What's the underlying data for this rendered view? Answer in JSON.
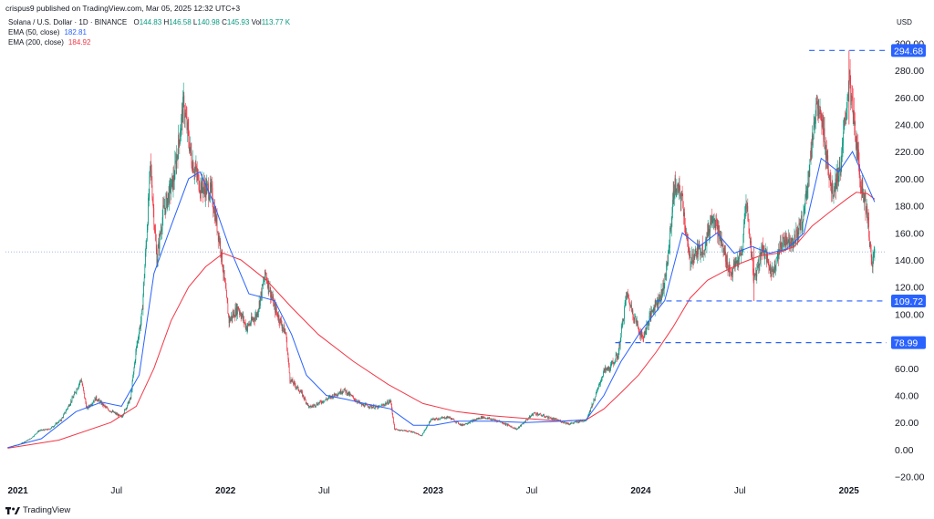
{
  "header": {
    "published": "crispus9 published on TradingView.com, Mar 05, 2025 12:32 UTC+3"
  },
  "legend": {
    "symbol": "Solana / U.S. Dollar · 1D · BINANCE",
    "open_label": "O",
    "open": "144.83",
    "high_label": "H",
    "high": "146.58",
    "low_label": "L",
    "low": "140.98",
    "close_label": "C",
    "close": "145.93",
    "vol_label": "Vol",
    "vol": "113.77 K",
    "ema50_label": "EMA (50, close)",
    "ema50": "182.81",
    "ema200_label": "EMA (200, close)",
    "ema200": "184.92"
  },
  "currency": "USD",
  "footer": {
    "brand": "TradingView"
  },
  "colors": {
    "up": "#089981",
    "down": "#f23645",
    "ema50": "#2962ff",
    "ema200": "#f23645",
    "level_line": "#2962ff",
    "level_tag": "#2962ff"
  },
  "chart_data": {
    "type": "candlestick",
    "y_axis": {
      "ticks": [
        300,
        280,
        260,
        240,
        220,
        200,
        180,
        160,
        140,
        120,
        100,
        80,
        60,
        40,
        20,
        0,
        -20
      ],
      "tick_labels": [
        "300.00",
        "280.00",
        "260.00",
        "240.00",
        "220.00",
        "200.00",
        "180.00",
        "160.00",
        "140.00",
        "120.00",
        "100.00",
        "80.00",
        "60.00",
        "40.00",
        "20.00",
        "0.00",
        "−20.00"
      ],
      "range": [
        -25,
        305
      ]
    },
    "x_axis": {
      "labels": [
        {
          "text": "2021",
          "date": "2021-01-01",
          "year": true
        },
        {
          "text": "Jul",
          "date": "2021-07-01",
          "year": false
        },
        {
          "text": "2022",
          "date": "2022-01-01",
          "year": true
        },
        {
          "text": "Jul",
          "date": "2022-07-01",
          "year": false
        },
        {
          "text": "2023",
          "date": "2023-01-01",
          "year": true
        },
        {
          "text": "Jul",
          "date": "2023-07-01",
          "year": false
        },
        {
          "text": "2024",
          "date": "2024-01-01",
          "year": true
        },
        {
          "text": "Jul",
          "date": "2024-07-01",
          "year": false
        },
        {
          "text": "2025",
          "date": "2025-01-01",
          "year": true
        }
      ],
      "range": [
        "2020-12-28",
        "2025-03-26"
      ]
    },
    "levels": [
      {
        "value": 294.68,
        "label": "294.68",
        "from": "2024-11-10"
      },
      {
        "value": 109.72,
        "label": "109.72",
        "from": "2024-02-15"
      },
      {
        "value": 78.99,
        "label": "78.99",
        "from": "2023-12-05"
      }
    ],
    "current_price": 145.93,
    "price_points": [
      [
        "2021-01-01",
        1.5
      ],
      [
        "2021-01-20",
        3.5
      ],
      [
        "2021-02-10",
        8
      ],
      [
        "2021-02-25",
        14
      ],
      [
        "2021-03-15",
        15
      ],
      [
        "2021-04-05",
        22
      ],
      [
        "2021-04-25",
        38
      ],
      [
        "2021-05-10",
        52
      ],
      [
        "2021-05-20",
        30
      ],
      [
        "2021-06-05",
        38
      ],
      [
        "2021-06-25",
        30
      ],
      [
        "2021-07-20",
        24
      ],
      [
        "2021-08-05",
        38
      ],
      [
        "2021-08-15",
        75
      ],
      [
        "2021-08-25",
        100
      ],
      [
        "2021-09-01",
        150
      ],
      [
        "2021-09-09",
        210
      ],
      [
        "2021-09-20",
        140
      ],
      [
        "2021-10-01",
        175
      ],
      [
        "2021-10-20",
        200
      ],
      [
        "2021-11-06",
        255
      ],
      [
        "2021-11-20",
        215
      ],
      [
        "2021-12-05",
        195
      ],
      [
        "2021-12-25",
        190
      ],
      [
        "2022-01-10",
        150
      ],
      [
        "2022-01-25",
        95
      ],
      [
        "2022-02-10",
        105
      ],
      [
        "2022-02-25",
        90
      ],
      [
        "2022-03-15",
        100
      ],
      [
        "2022-03-30",
        130
      ],
      [
        "2022-04-15",
        105
      ],
      [
        "2022-05-05",
        85
      ],
      [
        "2022-05-12",
        52
      ],
      [
        "2022-06-01",
        42
      ],
      [
        "2022-06-15",
        31
      ],
      [
        "2022-07-10",
        36
      ],
      [
        "2022-08-15",
        44
      ],
      [
        "2022-09-15",
        33
      ],
      [
        "2022-10-15",
        31
      ],
      [
        "2022-11-05",
        36
      ],
      [
        "2022-11-12",
        15
      ],
      [
        "2022-12-15",
        13
      ],
      [
        "2022-12-29",
        10
      ],
      [
        "2023-01-15",
        22
      ],
      [
        "2023-02-15",
        24
      ],
      [
        "2023-03-10",
        18
      ],
      [
        "2023-04-15",
        24
      ],
      [
        "2023-05-15",
        21
      ],
      [
        "2023-06-15",
        15
      ],
      [
        "2023-07-15",
        27
      ],
      [
        "2023-08-15",
        23
      ],
      [
        "2023-09-15",
        19
      ],
      [
        "2023-10-15",
        22
      ],
      [
        "2023-10-30",
        38
      ],
      [
        "2023-11-15",
        58
      ],
      [
        "2023-11-25",
        60
      ],
      [
        "2023-12-10",
        70
      ],
      [
        "2023-12-25",
        115
      ],
      [
        "2024-01-10",
        95
      ],
      [
        "2024-01-22",
        82
      ],
      [
        "2024-02-10",
        105
      ],
      [
        "2024-02-25",
        115
      ],
      [
        "2024-03-05",
        135
      ],
      [
        "2024-03-18",
        195
      ],
      [
        "2024-04-01",
        185
      ],
      [
        "2024-04-13",
        140
      ],
      [
        "2024-04-25",
        145
      ],
      [
        "2024-05-10",
        150
      ],
      [
        "2024-05-25",
        175
      ],
      [
        "2024-06-10",
        150
      ],
      [
        "2024-06-25",
        130
      ],
      [
        "2024-07-15",
        145
      ],
      [
        "2024-07-22",
        185
      ],
      [
        "2024-08-05",
        125
      ],
      [
        "2024-08-20",
        150
      ],
      [
        "2024-09-05",
        130
      ],
      [
        "2024-09-25",
        155
      ],
      [
        "2024-10-15",
        155
      ],
      [
        "2024-10-30",
        170
      ],
      [
        "2024-11-12",
        215
      ],
      [
        "2024-11-22",
        255
      ],
      [
        "2024-12-05",
        235
      ],
      [
        "2024-12-20",
        190
      ],
      [
        "2025-01-05",
        210
      ],
      [
        "2025-01-19",
        275
      ],
      [
        "2025-01-28",
        240
      ],
      [
        "2025-02-08",
        200
      ],
      [
        "2025-02-20",
        175
      ],
      [
        "2025-02-28",
        135
      ],
      [
        "2025-03-05",
        146
      ]
    ],
    "ema50_points": [
      [
        "2021-01-01",
        1.5
      ],
      [
        "2021-03-01",
        8
      ],
      [
        "2021-05-01",
        28
      ],
      [
        "2021-06-15",
        35
      ],
      [
        "2021-07-20",
        32
      ],
      [
        "2021-08-20",
        55
      ],
      [
        "2021-09-15",
        130
      ],
      [
        "2021-10-15",
        165
      ],
      [
        "2021-11-15",
        200
      ],
      [
        "2021-12-05",
        205
      ],
      [
        "2021-12-31",
        180
      ],
      [
        "2022-01-25",
        150
      ],
      [
        "2022-03-01",
        115
      ],
      [
        "2022-04-15",
        110
      ],
      [
        "2022-05-15",
        85
      ],
      [
        "2022-06-10",
        55
      ],
      [
        "2022-07-15",
        40
      ],
      [
        "2022-08-20",
        37
      ],
      [
        "2022-10-01",
        33
      ],
      [
        "2022-11-05",
        30
      ],
      [
        "2022-12-15",
        18
      ],
      [
        "2023-01-20",
        18
      ],
      [
        "2023-03-01",
        21
      ],
      [
        "2023-05-01",
        21
      ],
      [
        "2023-07-01",
        20
      ],
      [
        "2023-09-01",
        21
      ],
      [
        "2023-10-15",
        22
      ],
      [
        "2023-11-15",
        40
      ],
      [
        "2023-12-15",
        65
      ],
      [
        "2024-01-20",
        88
      ],
      [
        "2024-03-01",
        110
      ],
      [
        "2024-04-01",
        160
      ],
      [
        "2024-05-01",
        150
      ],
      [
        "2024-06-01",
        160
      ],
      [
        "2024-07-01",
        145
      ],
      [
        "2024-08-01",
        150
      ],
      [
        "2024-09-01",
        145
      ],
      [
        "2024-10-01",
        148
      ],
      [
        "2024-11-01",
        160
      ],
      [
        "2024-12-01",
        215
      ],
      [
        "2025-01-01",
        205
      ],
      [
        "2025-01-25",
        220
      ],
      [
        "2025-02-15",
        200
      ],
      [
        "2025-03-05",
        182.81
      ]
    ],
    "ema200_points": [
      [
        "2021-01-01",
        1
      ],
      [
        "2021-04-01",
        7
      ],
      [
        "2021-07-01",
        20
      ],
      [
        "2021-08-15",
        32
      ],
      [
        "2021-09-15",
        60
      ],
      [
        "2021-10-15",
        95
      ],
      [
        "2021-11-15",
        120
      ],
      [
        "2021-12-15",
        135
      ],
      [
        "2022-01-15",
        145
      ],
      [
        "2022-02-15",
        140
      ],
      [
        "2022-04-01",
        125
      ],
      [
        "2022-05-15",
        105
      ],
      [
        "2022-07-01",
        85
      ],
      [
        "2022-09-01",
        65
      ],
      [
        "2022-11-01",
        48
      ],
      [
        "2023-01-01",
        34
      ],
      [
        "2023-03-01",
        28
      ],
      [
        "2023-05-01",
        25
      ],
      [
        "2023-07-01",
        23
      ],
      [
        "2023-09-01",
        21
      ],
      [
        "2023-10-15",
        22
      ],
      [
        "2023-11-15",
        30
      ],
      [
        "2023-12-15",
        42
      ],
      [
        "2024-01-15",
        55
      ],
      [
        "2024-02-15",
        72
      ],
      [
        "2024-03-15",
        90
      ],
      [
        "2024-04-15",
        112
      ],
      [
        "2024-05-15",
        125
      ],
      [
        "2024-06-15",
        132
      ],
      [
        "2024-07-15",
        138
      ],
      [
        "2024-08-15",
        143
      ],
      [
        "2024-09-15",
        145
      ],
      [
        "2024-10-15",
        150
      ],
      [
        "2024-11-15",
        165
      ],
      [
        "2024-12-15",
        175
      ],
      [
        "2025-01-15",
        185
      ],
      [
        "2025-02-01",
        190
      ],
      [
        "2025-02-20",
        189
      ],
      [
        "2025-03-05",
        184.92
      ]
    ]
  }
}
